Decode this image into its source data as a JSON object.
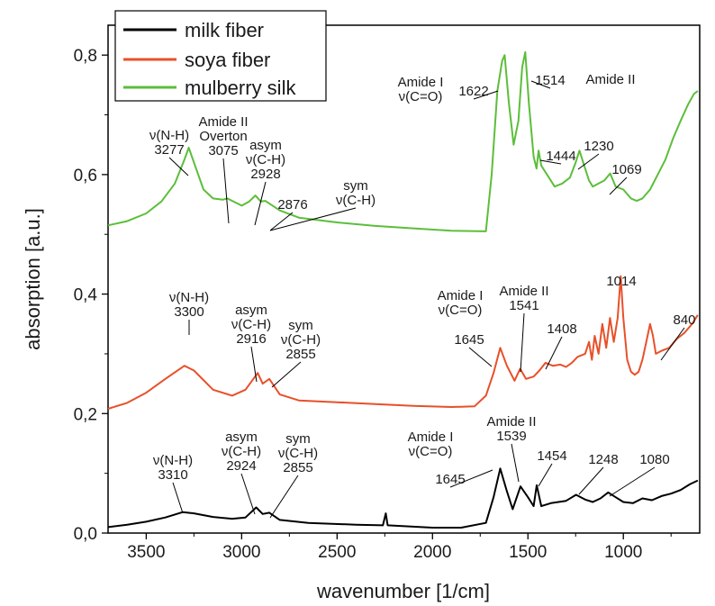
{
  "chart_data": {
    "type": "line",
    "xlabel": "wavenumber [1/cm]",
    "ylabel": "absorption [a.u.]",
    "xlim": [
      3700,
      600
    ],
    "ylim": [
      0,
      0.85
    ],
    "x_ticks": [
      3500,
      3000,
      2500,
      2000,
      1500,
      1000
    ],
    "x_tick_labels": [
      "3500",
      "3000",
      "2500",
      "2000",
      "1500",
      "1000"
    ],
    "y_ticks": [
      0,
      0.2,
      0.4,
      0.6,
      0.8
    ],
    "y_tick_labels": [
      "0,0",
      "0,2",
      "0,4",
      "0,6",
      "0,8"
    ],
    "legend_position": "top-left",
    "series": [
      {
        "name": "milk fiber",
        "color": "#000000",
        "points": [
          [
            3700,
            0.01
          ],
          [
            3600,
            0.014
          ],
          [
            3500,
            0.019
          ],
          [
            3400,
            0.026
          ],
          [
            3310,
            0.035
          ],
          [
            3250,
            0.033
          ],
          [
            3150,
            0.027
          ],
          [
            3050,
            0.024
          ],
          [
            2980,
            0.026
          ],
          [
            2924,
            0.043
          ],
          [
            2890,
            0.032
          ],
          [
            2855,
            0.034
          ],
          [
            2800,
            0.022
          ],
          [
            2650,
            0.017
          ],
          [
            2400,
            0.014
          ],
          [
            2260,
            0.013
          ],
          [
            2245,
            0.033
          ],
          [
            2235,
            0.013
          ],
          [
            2000,
            0.009
          ],
          [
            1850,
            0.009
          ],
          [
            1720,
            0.017
          ],
          [
            1680,
            0.06
          ],
          [
            1645,
            0.108
          ],
          [
            1610,
            0.07
          ],
          [
            1580,
            0.04
          ],
          [
            1539,
            0.078
          ],
          [
            1500,
            0.06
          ],
          [
            1470,
            0.045
          ],
          [
            1454,
            0.08
          ],
          [
            1430,
            0.045
          ],
          [
            1380,
            0.05
          ],
          [
            1300,
            0.054
          ],
          [
            1248,
            0.064
          ],
          [
            1200,
            0.056
          ],
          [
            1160,
            0.052
          ],
          [
            1120,
            0.058
          ],
          [
            1080,
            0.068
          ],
          [
            1040,
            0.06
          ],
          [
            1000,
            0.052
          ],
          [
            950,
            0.05
          ],
          [
            900,
            0.058
          ],
          [
            850,
            0.055
          ],
          [
            800,
            0.062
          ],
          [
            750,
            0.066
          ],
          [
            700,
            0.072
          ],
          [
            650,
            0.082
          ],
          [
            610,
            0.088
          ]
        ]
      },
      {
        "name": "soya fiber",
        "color": "#e8502a",
        "points": [
          [
            3700,
            0.208
          ],
          [
            3600,
            0.218
          ],
          [
            3500,
            0.235
          ],
          [
            3400,
            0.258
          ],
          [
            3300,
            0.28
          ],
          [
            3250,
            0.272
          ],
          [
            3150,
            0.24
          ],
          [
            3050,
            0.23
          ],
          [
            2980,
            0.24
          ],
          [
            2916,
            0.268
          ],
          [
            2890,
            0.25
          ],
          [
            2855,
            0.258
          ],
          [
            2800,
            0.232
          ],
          [
            2700,
            0.222
          ],
          [
            2500,
            0.219
          ],
          [
            2300,
            0.216
          ],
          [
            2100,
            0.213
          ],
          [
            1900,
            0.211
          ],
          [
            1780,
            0.212
          ],
          [
            1720,
            0.23
          ],
          [
            1680,
            0.268
          ],
          [
            1645,
            0.31
          ],
          [
            1610,
            0.28
          ],
          [
            1570,
            0.255
          ],
          [
            1541,
            0.275
          ],
          [
            1510,
            0.258
          ],
          [
            1470,
            0.262
          ],
          [
            1440,
            0.272
          ],
          [
            1408,
            0.285
          ],
          [
            1370,
            0.28
          ],
          [
            1330,
            0.282
          ],
          [
            1300,
            0.278
          ],
          [
            1270,
            0.285
          ],
          [
            1240,
            0.295
          ],
          [
            1200,
            0.3
          ],
          [
            1180,
            0.32
          ],
          [
            1165,
            0.29
          ],
          [
            1150,
            0.33
          ],
          [
            1130,
            0.3
          ],
          [
            1110,
            0.35
          ],
          [
            1090,
            0.31
          ],
          [
            1070,
            0.36
          ],
          [
            1050,
            0.32
          ],
          [
            1030,
            0.36
          ],
          [
            1014,
            0.43
          ],
          [
            1000,
            0.36
          ],
          [
            980,
            0.29
          ],
          [
            960,
            0.27
          ],
          [
            940,
            0.265
          ],
          [
            920,
            0.27
          ],
          [
            900,
            0.29
          ],
          [
            880,
            0.32
          ],
          [
            860,
            0.35
          ],
          [
            845,
            0.33
          ],
          [
            830,
            0.3
          ],
          [
            800,
            0.305
          ],
          [
            760,
            0.31
          ],
          [
            720,
            0.325
          ],
          [
            680,
            0.335
          ],
          [
            640,
            0.35
          ],
          [
            610,
            0.365
          ]
        ]
      },
      {
        "name": "mulberry silk",
        "color": "#5cbe3a",
        "points": [
          [
            3700,
            0.515
          ],
          [
            3600,
            0.522
          ],
          [
            3500,
            0.535
          ],
          [
            3420,
            0.555
          ],
          [
            3350,
            0.585
          ],
          [
            3300,
            0.625
          ],
          [
            3277,
            0.645
          ],
          [
            3250,
            0.62
          ],
          [
            3200,
            0.575
          ],
          [
            3150,
            0.56
          ],
          [
            3100,
            0.558
          ],
          [
            3075,
            0.56
          ],
          [
            3000,
            0.548
          ],
          [
            2960,
            0.555
          ],
          [
            2928,
            0.565
          ],
          [
            2900,
            0.555
          ],
          [
            2876,
            0.556
          ],
          [
            2800,
            0.54
          ],
          [
            2700,
            0.528
          ],
          [
            2500,
            0.52
          ],
          [
            2300,
            0.514
          ],
          [
            2100,
            0.51
          ],
          [
            1900,
            0.506
          ],
          [
            1720,
            0.505
          ],
          [
            1690,
            0.6
          ],
          [
            1660,
            0.74
          ],
          [
            1635,
            0.79
          ],
          [
            1622,
            0.8
          ],
          [
            1600,
            0.72
          ],
          [
            1575,
            0.65
          ],
          [
            1550,
            0.69
          ],
          [
            1530,
            0.78
          ],
          [
            1514,
            0.805
          ],
          [
            1495,
            0.72
          ],
          [
            1470,
            0.63
          ],
          [
            1455,
            0.61
          ],
          [
            1444,
            0.64
          ],
          [
            1430,
            0.615
          ],
          [
            1400,
            0.6
          ],
          [
            1360,
            0.58
          ],
          [
            1320,
            0.585
          ],
          [
            1280,
            0.595
          ],
          [
            1250,
            0.62
          ],
          [
            1230,
            0.64
          ],
          [
            1210,
            0.62
          ],
          [
            1180,
            0.59
          ],
          [
            1160,
            0.58
          ],
          [
            1130,
            0.585
          ],
          [
            1100,
            0.59
          ],
          [
            1069,
            0.602
          ],
          [
            1040,
            0.58
          ],
          [
            1000,
            0.575
          ],
          [
            960,
            0.56
          ],
          [
            930,
            0.556
          ],
          [
            900,
            0.56
          ],
          [
            860,
            0.575
          ],
          [
            820,
            0.6
          ],
          [
            780,
            0.625
          ],
          [
            740,
            0.66
          ],
          [
            700,
            0.69
          ],
          [
            660,
            0.718
          ],
          [
            630,
            0.735
          ],
          [
            610,
            0.74
          ]
        ]
      }
    ],
    "annotations": [
      {
        "series": "mulberry silk",
        "lines": [
          "ν(N-H)",
          "3277"
        ],
        "x": 3277
      },
      {
        "series": "mulberry silk",
        "lines": [
          "Amide II",
          "Overton",
          "3075"
        ],
        "x": 3075
      },
      {
        "series": "mulberry silk",
        "lines": [
          "asym",
          "ν(C-H)",
          "2928"
        ],
        "x": 2928
      },
      {
        "series": "mulberry silk",
        "lines": [
          "sym",
          "ν(C-H)"
        ],
        "x": 2876
      },
      {
        "series": "mulberry silk",
        "lines": [
          "2876"
        ],
        "x": 2876
      },
      {
        "series": "mulberry silk",
        "lines": [
          "Amide I",
          "ν(C=O)"
        ],
        "x": 1622
      },
      {
        "series": "mulberry silk",
        "lines": [
          "1622"
        ],
        "x": 1622
      },
      {
        "series": "mulberry silk",
        "lines": [
          "1514"
        ],
        "x": 1514
      },
      {
        "series": "mulberry silk",
        "lines": [
          "Amide II"
        ],
        "x": 1514
      },
      {
        "series": "mulberry silk",
        "lines": [
          "1444"
        ],
        "x": 1444
      },
      {
        "series": "mulberry silk",
        "lines": [
          "1230"
        ],
        "x": 1230
      },
      {
        "series": "mulberry silk",
        "lines": [
          "1069"
        ],
        "x": 1069
      },
      {
        "series": "soya fiber",
        "lines": [
          "ν(N-H)",
          "3300"
        ],
        "x": 3300
      },
      {
        "series": "soya fiber",
        "lines": [
          "asym",
          "ν(C-H)",
          "2916"
        ],
        "x": 2916
      },
      {
        "series": "soya fiber",
        "lines": [
          "sym",
          "ν(C-H)",
          "2855"
        ],
        "x": 2855
      },
      {
        "series": "soya fiber",
        "lines": [
          "Amide I",
          "ν(C=O)"
        ],
        "x": 1645
      },
      {
        "series": "soya fiber",
        "lines": [
          "1645"
        ],
        "x": 1645
      },
      {
        "series": "soya fiber",
        "lines": [
          "Amide II",
          "1541"
        ],
        "x": 1541
      },
      {
        "series": "soya fiber",
        "lines": [
          "1408"
        ],
        "x": 1408
      },
      {
        "series": "soya fiber",
        "lines": [
          "1014"
        ],
        "x": 1014
      },
      {
        "series": "soya fiber",
        "lines": [
          "840"
        ],
        "x": 840
      },
      {
        "series": "milk fiber",
        "lines": [
          "ν(N-H)",
          "3310"
        ],
        "x": 3310
      },
      {
        "series": "milk fiber",
        "lines": [
          "asym",
          "ν(C-H)",
          "2924"
        ],
        "x": 2924
      },
      {
        "series": "milk fiber",
        "lines": [
          "sym",
          "ν(C-H)",
          "2855"
        ],
        "x": 2855
      },
      {
        "series": "milk fiber",
        "lines": [
          "Amide I",
          "ν(C=O)"
        ],
        "x": 1645
      },
      {
        "series": "milk fiber",
        "lines": [
          "1645"
        ],
        "x": 1645
      },
      {
        "series": "milk fiber",
        "lines": [
          "Amide II",
          "1539"
        ],
        "x": 1539
      },
      {
        "series": "milk fiber",
        "lines": [
          "1454"
        ],
        "x": 1454
      },
      {
        "series": "milk fiber",
        "lines": [
          "1248"
        ],
        "x": 1248
      },
      {
        "series": "milk fiber",
        "lines": [
          "1080"
        ],
        "x": 1080
      }
    ]
  }
}
